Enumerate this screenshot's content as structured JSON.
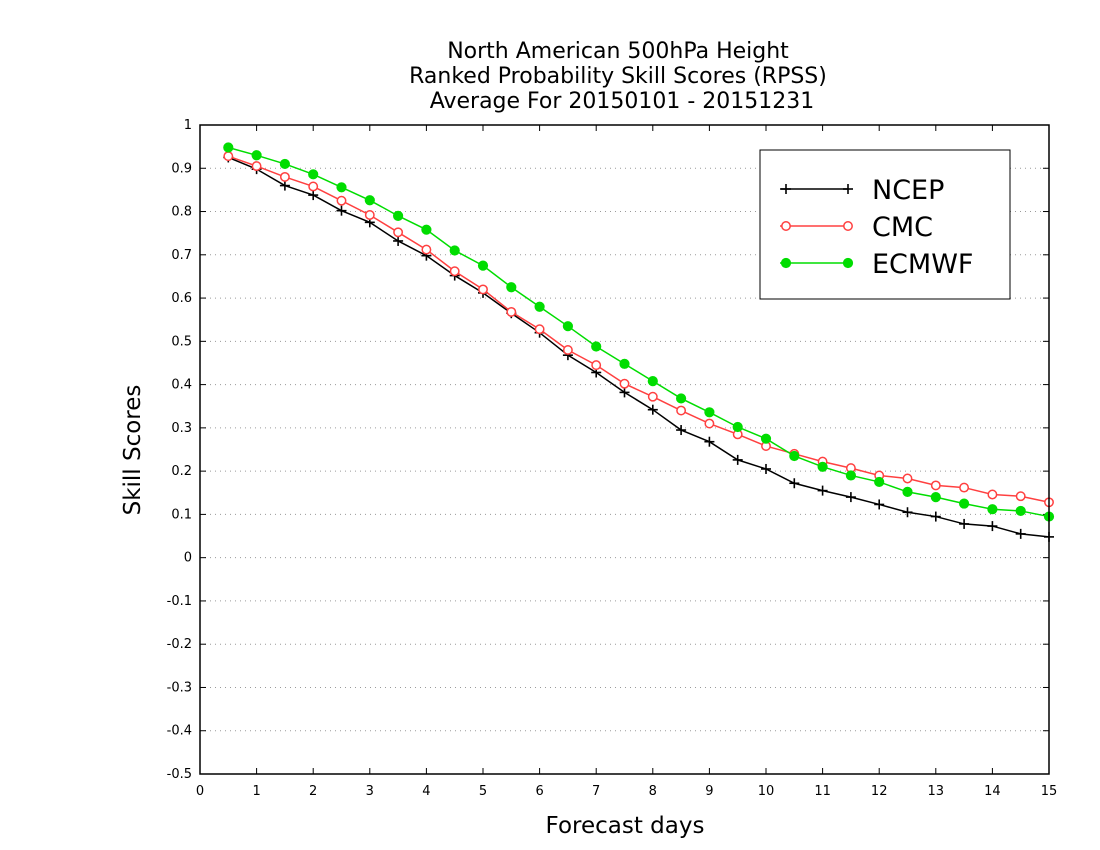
{
  "chart_data": {
    "type": "line",
    "title_lines": [
      "North American 500hPa Height",
      "Ranked Probability Skill Scores (RPSS)",
      "Average For 20150101 - 20151231"
    ],
    "xlabel": "Forecast days",
    "ylabel": "Skill Scores",
    "xlim": [
      0,
      15
    ],
    "ylim": [
      -0.5,
      1
    ],
    "x_ticks": [
      "0",
      "1",
      "2",
      "3",
      "4",
      "5",
      "6",
      "7",
      "8",
      "9",
      "10",
      "11",
      "12",
      "13",
      "14",
      "15"
    ],
    "y_ticks": [
      "1",
      "0.9",
      "0.8",
      "0.7",
      "0.6",
      "0.5",
      "0.4",
      "0.3",
      "0.2",
      "0.1",
      "0",
      "-0.1",
      "-0.2",
      "-0.3",
      "-0.4",
      "-0.5"
    ],
    "grid": "horizontal dotted",
    "legend_position": "top-right",
    "x": [
      0.5,
      1,
      1.5,
      2,
      2.5,
      3,
      3.5,
      4,
      4.5,
      5,
      5.5,
      6,
      6.5,
      7,
      7.5,
      8,
      8.5,
      9,
      9.5,
      10,
      10.5,
      11,
      11.5,
      12,
      12.5,
      13,
      13.5,
      14,
      14.5,
      15
    ],
    "series": [
      {
        "name": "NCEP",
        "color": "#000000",
        "marker": "plus",
        "values": [
          0.925,
          0.898,
          0.86,
          0.838,
          0.802,
          0.775,
          0.732,
          0.698,
          0.652,
          0.612,
          0.565,
          0.52,
          0.468,
          0.428,
          0.382,
          0.342,
          0.295,
          0.268,
          0.226,
          0.205,
          0.172,
          0.155,
          0.14,
          0.123,
          0.105,
          0.095,
          0.078,
          0.073,
          0.055,
          0.048
        ]
      },
      {
        "name": "CMC",
        "color": "#ff4040",
        "marker": "open-circle",
        "values": [
          0.928,
          0.905,
          0.88,
          0.858,
          0.825,
          0.792,
          0.752,
          0.712,
          0.662,
          0.62,
          0.568,
          0.528,
          0.48,
          0.445,
          0.402,
          0.372,
          0.34,
          0.31,
          0.285,
          0.258,
          0.24,
          0.222,
          0.207,
          0.19,
          0.183,
          0.167,
          0.162,
          0.146,
          0.142,
          0.128
        ]
      },
      {
        "name": "ECMWF",
        "color": "#00dd00",
        "marker": "filled-circle",
        "values": [
          0.948,
          0.93,
          0.91,
          0.886,
          0.856,
          0.826,
          0.79,
          0.758,
          0.71,
          0.675,
          0.625,
          0.58,
          0.535,
          0.488,
          0.448,
          0.408,
          0.368,
          0.336,
          0.302,
          0.275,
          0.235,
          0.21,
          0.19,
          0.175,
          0.152,
          0.14,
          0.125,
          0.112,
          0.108,
          0.095
        ]
      }
    ]
  }
}
